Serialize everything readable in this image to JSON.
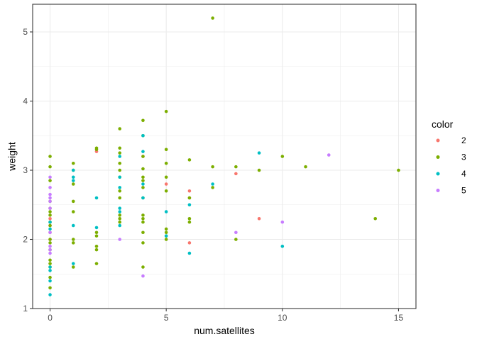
{
  "chart_data": {
    "type": "scatter",
    "xlabel": "num.satellites",
    "ylabel": "weight",
    "xlim": [
      -0.75,
      15.75
    ],
    "ylim": [
      1.0,
      5.4
    ],
    "x_ticks": [
      0,
      5,
      10,
      15
    ],
    "y_ticks": [
      1,
      2,
      3,
      4,
      5
    ],
    "grid": true,
    "legend": {
      "title": "color",
      "position": "right"
    },
    "series": [
      {
        "name": "2",
        "color": "#F8766D",
        "points": [
          [
            0,
            2.3
          ],
          [
            0,
            2.2
          ],
          [
            0,
            2.1
          ],
          [
            0,
            2.0
          ],
          [
            2,
            3.27
          ],
          [
            4,
            3.2
          ],
          [
            5,
            2.8
          ],
          [
            6,
            2.7
          ],
          [
            6,
            2.6
          ],
          [
            6,
            1.95
          ],
          [
            8,
            2.95
          ],
          [
            9,
            2.3
          ]
        ]
      },
      {
        "name": "3",
        "color": "#7CAE00",
        "points": [
          [
            0,
            3.2
          ],
          [
            0,
            3.05
          ],
          [
            0,
            2.85
          ],
          [
            0,
            2.55
          ],
          [
            0,
            2.45
          ],
          [
            0,
            2.4
          ],
          [
            0,
            2.35
          ],
          [
            0,
            2.25
          ],
          [
            0,
            2.2
          ],
          [
            0,
            2.0
          ],
          [
            0,
            1.95
          ],
          [
            0,
            1.85
          ],
          [
            0,
            1.7
          ],
          [
            0,
            1.65
          ],
          [
            0,
            1.6
          ],
          [
            0,
            1.45
          ],
          [
            0,
            1.3
          ],
          [
            1,
            3.1
          ],
          [
            1,
            3.0
          ],
          [
            1,
            2.8
          ],
          [
            1,
            2.55
          ],
          [
            1,
            2.4
          ],
          [
            1,
            2.0
          ],
          [
            1,
            1.95
          ],
          [
            1,
            1.6
          ],
          [
            2,
            3.32
          ],
          [
            2,
            3.3
          ],
          [
            2,
            2.1
          ],
          [
            2,
            2.05
          ],
          [
            2,
            1.9
          ],
          [
            2,
            1.85
          ],
          [
            2,
            1.65
          ],
          [
            3,
            3.6
          ],
          [
            3,
            3.32
          ],
          [
            3,
            3.25
          ],
          [
            3,
            3.1
          ],
          [
            3,
            3.0
          ],
          [
            3,
            2.9
          ],
          [
            3,
            2.7
          ],
          [
            3,
            2.6
          ],
          [
            3,
            2.35
          ],
          [
            3,
            2.3
          ],
          [
            3,
            2.25
          ],
          [
            4,
            3.72
          ],
          [
            4,
            3.5
          ],
          [
            4,
            3.2
          ],
          [
            4,
            3.02
          ],
          [
            4,
            2.9
          ],
          [
            4,
            2.85
          ],
          [
            4,
            2.75
          ],
          [
            4,
            2.6
          ],
          [
            4,
            2.35
          ],
          [
            4,
            2.3
          ],
          [
            4,
            2.25
          ],
          [
            4,
            2.1
          ],
          [
            4,
            1.95
          ],
          [
            4,
            1.6
          ],
          [
            5,
            3.85
          ],
          [
            5,
            3.3
          ],
          [
            5,
            3.1
          ],
          [
            5,
            2.9
          ],
          [
            5,
            2.7
          ],
          [
            5,
            2.15
          ],
          [
            5,
            2.1
          ],
          [
            5,
            2.05
          ],
          [
            5,
            2.0
          ],
          [
            6,
            3.15
          ],
          [
            6,
            2.6
          ],
          [
            6,
            2.3
          ],
          [
            6,
            2.25
          ],
          [
            7,
            5.2
          ],
          [
            7,
            3.05
          ],
          [
            7,
            2.75
          ],
          [
            8,
            3.05
          ],
          [
            8,
            2.0
          ],
          [
            9,
            3.0
          ],
          [
            10,
            3.2
          ],
          [
            11,
            3.05
          ],
          [
            14,
            2.3
          ],
          [
            15,
            3.0
          ]
        ]
      },
      {
        "name": "4",
        "color": "#00BFC4",
        "points": [
          [
            0,
            2.25
          ],
          [
            0,
            2.15
          ],
          [
            0,
            1.6
          ],
          [
            0,
            1.55
          ],
          [
            0,
            1.4
          ],
          [
            0,
            1.2
          ],
          [
            1,
            3.0
          ],
          [
            1,
            2.9
          ],
          [
            1,
            2.85
          ],
          [
            1,
            2.2
          ],
          [
            1,
            1.65
          ],
          [
            2,
            2.6
          ],
          [
            2,
            2.17
          ],
          [
            3,
            3.2
          ],
          [
            3,
            2.9
          ],
          [
            3,
            2.75
          ],
          [
            3,
            2.45
          ],
          [
            3,
            2.4
          ],
          [
            3,
            2.2
          ],
          [
            4,
            3.5
          ],
          [
            4,
            3.27
          ],
          [
            4,
            2.8
          ],
          [
            4,
            2.6
          ],
          [
            5,
            2.4
          ],
          [
            5,
            2.05
          ],
          [
            6,
            2.5
          ],
          [
            6,
            1.8
          ],
          [
            7,
            2.8
          ],
          [
            9,
            3.25
          ],
          [
            10,
            1.9
          ]
        ]
      },
      {
        "name": "5",
        "color": "#C77CFF",
        "points": [
          [
            0,
            2.9
          ],
          [
            0,
            2.75
          ],
          [
            0,
            2.65
          ],
          [
            0,
            2.6
          ],
          [
            0,
            2.55
          ],
          [
            0,
            2.45
          ],
          [
            0,
            2.1
          ],
          [
            0,
            1.9
          ],
          [
            0,
            1.85
          ],
          [
            0,
            1.8
          ],
          [
            3,
            2.0
          ],
          [
            4,
            1.47
          ],
          [
            8,
            2.1
          ],
          [
            10,
            2.25
          ],
          [
            12,
            3.22
          ]
        ]
      }
    ]
  }
}
